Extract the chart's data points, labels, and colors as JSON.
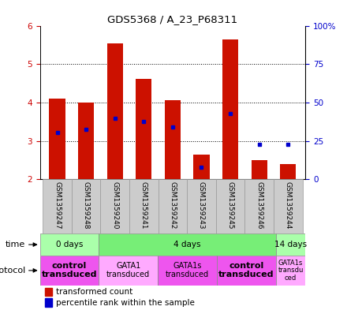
{
  "title": "GDS5368 / A_23_P68311",
  "samples": [
    "GSM1359247",
    "GSM1359248",
    "GSM1359240",
    "GSM1359241",
    "GSM1359242",
    "GSM1359243",
    "GSM1359245",
    "GSM1359246",
    "GSM1359244"
  ],
  "bar_bottoms": [
    2,
    2,
    2,
    2,
    2,
    2,
    2,
    2,
    2
  ],
  "bar_tops": [
    4.1,
    4.0,
    5.55,
    4.62,
    4.05,
    2.65,
    5.65,
    2.5,
    2.4
  ],
  "percentile_values": [
    3.22,
    3.3,
    3.58,
    3.5,
    3.35,
    2.32,
    3.7,
    2.9,
    2.9
  ],
  "ylim": [
    2,
    6
  ],
  "yticks_left": [
    2,
    3,
    4,
    5,
    6
  ],
  "yticks_right": [
    "0",
    "25",
    "50",
    "75",
    "100%"
  ],
  "bar_color": "#cc1100",
  "percentile_color": "#0000cc",
  "grid_color": "#000000",
  "time_groups": [
    {
      "label": "0 days",
      "start": 0,
      "end": 2,
      "color": "#aaffaa"
    },
    {
      "label": "4 days",
      "start": 2,
      "end": 8,
      "color": "#77ee77"
    },
    {
      "label": "14 days",
      "start": 8,
      "end": 9,
      "color": "#aaffaa"
    }
  ],
  "protocol_groups": [
    {
      "label": "control\ntransduced",
      "start": 0,
      "end": 2,
      "color": "#ee55ee",
      "bold": true,
      "fontsize": 8
    },
    {
      "label": "GATA1\ntransduced",
      "start": 2,
      "end": 4,
      "color": "#ffaaff",
      "bold": false,
      "fontsize": 7
    },
    {
      "label": "GATA1s\ntransduced",
      "start": 4,
      "end": 6,
      "color": "#ee55ee",
      "bold": false,
      "fontsize": 7
    },
    {
      "label": "control\ntransduced",
      "start": 6,
      "end": 8,
      "color": "#ee55ee",
      "bold": true,
      "fontsize": 8
    },
    {
      "label": "GATA1s\ntransdu\nced",
      "start": 8,
      "end": 9,
      "color": "#ffaaff",
      "bold": false,
      "fontsize": 6
    }
  ],
  "ylabel_left_color": "#cc0000",
  "ylabel_right_color": "#0000cc",
  "sample_bg_color": "#cccccc",
  "sample_border_color": "#999999"
}
